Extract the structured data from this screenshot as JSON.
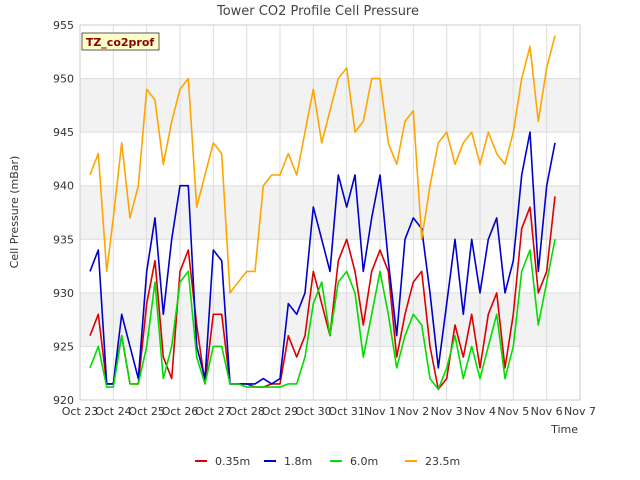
{
  "chart_data": {
    "type": "line",
    "title": "Tower CO2 Profile Cell Pressure",
    "xlabel": "Time",
    "ylabel": "Cell Pressure (mBar)",
    "badge": "TZ_co2prof",
    "ylim": [
      920,
      955
    ],
    "xlim": [
      0,
      15
    ],
    "yticks": [
      920,
      925,
      930,
      935,
      940,
      945,
      950,
      955
    ],
    "xticks": [
      "Oct 23",
      "Oct 24",
      "Oct 25",
      "Oct 26",
      "Oct 27",
      "Oct 28",
      "Oct 29",
      "Oct 30",
      "Oct 31",
      "Nov 1",
      "Nov 2",
      "Nov 3",
      "Nov 4",
      "Nov 5",
      "Nov 6",
      "Nov 7"
    ],
    "grid": true,
    "legend_position": "bottom",
    "x": [
      0.3,
      0.55,
      0.8,
      1.0,
      1.25,
      1.5,
      1.75,
      2.0,
      2.25,
      2.5,
      2.75,
      3.0,
      3.25,
      3.5,
      3.75,
      4.0,
      4.25,
      4.5,
      4.75,
      5.0,
      5.25,
      5.5,
      5.75,
      6.0,
      6.25,
      6.5,
      6.75,
      7.0,
      7.25,
      7.5,
      7.75,
      8.0,
      8.25,
      8.5,
      8.75,
      9.0,
      9.25,
      9.5,
      9.75,
      10.0,
      10.25,
      10.5,
      10.75,
      11.0,
      11.25,
      11.5,
      11.75,
      12.0,
      12.25,
      12.5,
      12.75,
      13.0,
      13.25,
      13.5,
      13.75,
      14.0,
      14.25
    ],
    "series": [
      {
        "name": "0.35m",
        "color": "#dd0000",
        "values": [
          926,
          928,
          921.5,
          921.5,
          926,
          921.5,
          921.5,
          929,
          933,
          924,
          922,
          932,
          934,
          927,
          921.5,
          928,
          928,
          921.5,
          921.5,
          921.5,
          921.2,
          921.2,
          921.5,
          921.5,
          926,
          924,
          926,
          932,
          929,
          926,
          933,
          935,
          932,
          927,
          932,
          934,
          932,
          924,
          928,
          931,
          932,
          925,
          921,
          922,
          927,
          924,
          928,
          923,
          928,
          930,
          923,
          928,
          936,
          938,
          930,
          932,
          939
        ]
      },
      {
        "name": "1.8m",
        "color": "#0000cc",
        "values": [
          932,
          934,
          921.5,
          921.5,
          928,
          925,
          922,
          932,
          937,
          928,
          935,
          940,
          940,
          925,
          922,
          934,
          933,
          921.5,
          921.5,
          921.5,
          921.5,
          922,
          921.5,
          922,
          929,
          928,
          930,
          938,
          935,
          932,
          941,
          938,
          941,
          932,
          937,
          941,
          933,
          926,
          935,
          937,
          936,
          930,
          923,
          929,
          935,
          928,
          935,
          930,
          935,
          937,
          930,
          933,
          941,
          945,
          932,
          940,
          944
        ]
      },
      {
        "name": "6.0m",
        "color": "#00dd00",
        "values": [
          923,
          925,
          921.2,
          921.2,
          926,
          921.5,
          921.5,
          925,
          931,
          922,
          925,
          931,
          932,
          924,
          921.5,
          925,
          925,
          921.5,
          921.5,
          921.2,
          921.2,
          921.2,
          921.2,
          921.2,
          921.5,
          921.5,
          924,
          929,
          931,
          926,
          931,
          932,
          930,
          924,
          928,
          932,
          928,
          923,
          926,
          928,
          927,
          922,
          921,
          923,
          926,
          922,
          925,
          922,
          925,
          928,
          922,
          925,
          932,
          934,
          927,
          931,
          935
        ]
      },
      {
        "name": "23.5m",
        "color": "#ffa500",
        "values": [
          941,
          943,
          932,
          937,
          944,
          937,
          940,
          949,
          948,
          942,
          946,
          949,
          950,
          938,
          941,
          944,
          943,
          930,
          931,
          932,
          932,
          940,
          941,
          941,
          943,
          941,
          945,
          949,
          944,
          947,
          950,
          951,
          945,
          946,
          950,
          950,
          944,
          942,
          946,
          947,
          935,
          940,
          944,
          945,
          942,
          944,
          945,
          942,
          945,
          943,
          942,
          945,
          950,
          953,
          946,
          951,
          954
        ]
      }
    ]
  }
}
